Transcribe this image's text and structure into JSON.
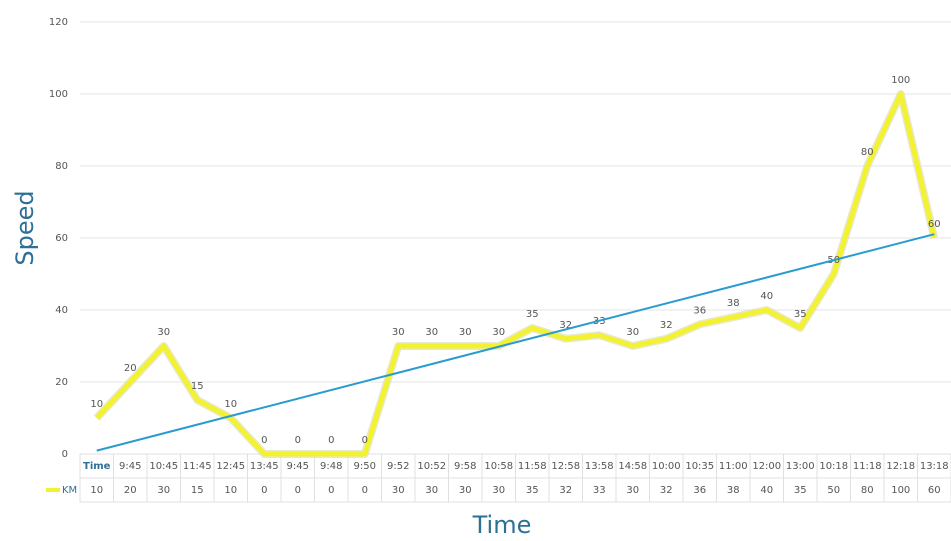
{
  "chart_data": {
    "type": "line",
    "y_label": "Speed",
    "x_label": "Time",
    "categories": [
      "Time",
      "9:45",
      "10:45",
      "11:45",
      "12:45",
      "13:45",
      "9:45",
      "9:48",
      "9:50",
      "9:52",
      "10:52",
      "9:58",
      "10:58",
      "11:58",
      "12:58",
      "13:58",
      "14:58",
      "10:00",
      "10:35",
      "11:00",
      "12:00",
      "13:00",
      "10:18",
      "11:18",
      "12:18",
      "13:18"
    ],
    "series": [
      {
        "name": "KM",
        "color": "#f2f230",
        "values": [
          10,
          20,
          30,
          15,
          10,
          0,
          0,
          0,
          0,
          30,
          30,
          30,
          30,
          35,
          32,
          33,
          30,
          32,
          36,
          38,
          40,
          35,
          50,
          80,
          100,
          60
        ]
      }
    ],
    "trendline": {
      "type": "linear",
      "color": "#2a9bd1"
    },
    "ylim": [
      0,
      120
    ],
    "yticks": [
      0,
      20,
      40,
      60,
      80,
      100,
      120
    ],
    "grid": true,
    "data_labels": true,
    "data_table": true
  }
}
